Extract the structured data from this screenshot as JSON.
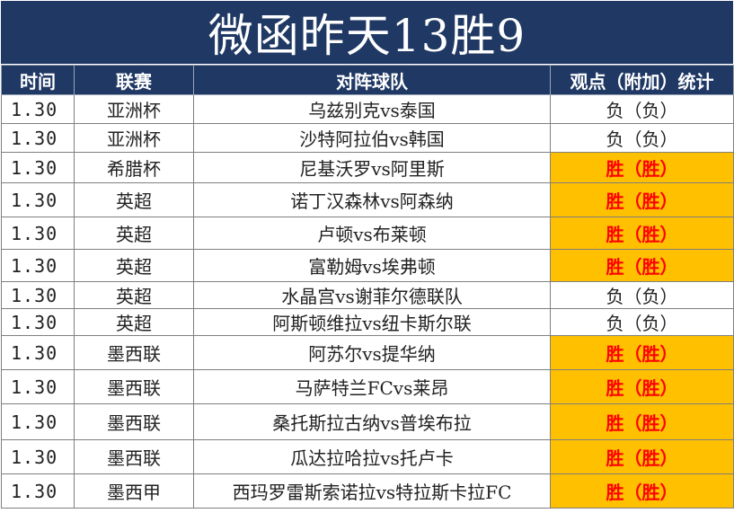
{
  "title": "微函昨天13胜9",
  "headers": {
    "time": "时间",
    "league": "联赛",
    "match": "对阵球队",
    "view": "观点（附加）统计"
  },
  "colors": {
    "header_bg": "#1f3864",
    "win_bg": "#ffc000",
    "win_text": "#ff0000"
  },
  "rows": [
    {
      "date": "1.30",
      "league": "亚洲杯",
      "match": "乌兹别克vs泰国",
      "result": "负（负）",
      "win": false
    },
    {
      "date": "1.30",
      "league": "亚洲杯",
      "match": "沙特阿拉伯vs韩国",
      "result": "负（负）",
      "win": false
    },
    {
      "date": "1.30",
      "league": "希腊杯",
      "match": "尼基沃罗vs阿里斯",
      "result": "胜（胜）",
      "win": true
    },
    {
      "date": "1.30",
      "league": "英超",
      "match": "诺丁汉森林vs阿森纳",
      "result": "胜（胜）",
      "win": true
    },
    {
      "date": "1.30",
      "league": "英超",
      "match": "卢顿vs布莱顿",
      "result": "胜（胜）",
      "win": true
    },
    {
      "date": "1.30",
      "league": "英超",
      "match": "富勒姆vs埃弗顿",
      "result": "胜（胜）",
      "win": true
    },
    {
      "date": "1.30",
      "league": "英超",
      "match": "水晶宫vs谢菲尔德联队",
      "result": "负（负）",
      "win": false
    },
    {
      "date": "1.30",
      "league": "英超",
      "match": "阿斯顿维拉vs纽卡斯尔联",
      "result": "负（负）",
      "win": false
    },
    {
      "date": "1.30",
      "league": "墨西联",
      "match": "阿苏尔vs提华纳",
      "result": "胜（胜）",
      "win": true
    },
    {
      "date": "1.30",
      "league": "墨西联",
      "match": "马萨特兰FCvs莱昂",
      "result": "胜（胜）",
      "win": true
    },
    {
      "date": "1.30",
      "league": "墨西联",
      "match": "桑托斯拉古纳vs普埃布拉",
      "result": "胜（胜）",
      "win": true
    },
    {
      "date": "1.30",
      "league": "墨西联",
      "match": "瓜达拉哈拉vs托卢卡",
      "result": "胜（胜）",
      "win": true
    },
    {
      "date": "1.30",
      "league": "墨西甲",
      "match": "西玛罗雷斯索诺拉vs特拉斯卡拉FC",
      "result": "胜（胜）",
      "win": true
    }
  ]
}
